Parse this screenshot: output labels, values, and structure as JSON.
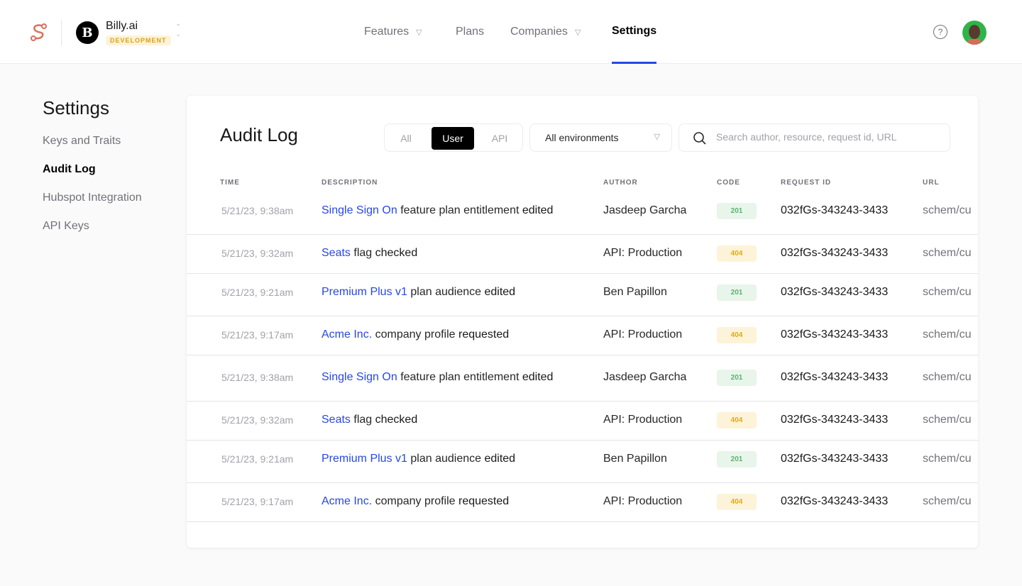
{
  "header": {
    "org_initial": "B",
    "org_name": "Billy.ai",
    "environment": "DEVELOPMENT",
    "nav": [
      {
        "label": "Features",
        "dropdown": true
      },
      {
        "label": "Plans"
      },
      {
        "label": "Companies",
        "dropdown": true
      },
      {
        "label": "Settings",
        "active": true
      }
    ],
    "help_icon": "?"
  },
  "sidebar": {
    "title": "Settings",
    "items": [
      {
        "label": "Keys and Traits"
      },
      {
        "label": "Audit Log",
        "active": true
      },
      {
        "label": "Hubspot Integration"
      },
      {
        "label": "API Keys"
      }
    ]
  },
  "audit": {
    "title": "Audit Log",
    "filters": [
      "All",
      "User",
      "API"
    ],
    "active_filter": "User",
    "environment_select": "All environments",
    "search_placeholder": "Search author, resource, request id, URL",
    "columns": [
      "TIME",
      "DESCRIPTION",
      "AUTHOR",
      "CODE",
      "REQUEST ID",
      "URL"
    ],
    "rows": [
      {
        "time": "5/21/23, 9:38am",
        "link": "Single Sign On",
        "text": "feature plan entitlement",
        "verb": "edited",
        "author": "Jasdeep Garcha",
        "code": "201",
        "request_id": "032fGs-343243-3433",
        "url": "schem/cu"
      },
      {
        "time": "5/21/23, 9:32am",
        "link": "Seats",
        "text": "flag",
        "verb": "checked",
        "author": "API: Production",
        "code": "404",
        "request_id": "032fGs-343243-3433",
        "url": "schem/cu"
      },
      {
        "time": "5/21/23, 9:21am",
        "link": "Premium Plus v1",
        "text": "plan audience",
        "verb": "edited",
        "author": "Ben Papillon",
        "code": "201",
        "request_id": "032fGs-343243-3433",
        "url": "schem/cu"
      },
      {
        "time": "5/21/23, 9:17am",
        "link": "Acme Inc.",
        "text": "company profile",
        "verb": "requested",
        "author": "API: Production",
        "code": "404",
        "request_id": "032fGs-343243-3433",
        "url": "schem/cu"
      },
      {
        "time": "5/21/23, 9:38am",
        "link": "Single Sign On",
        "text": "feature plan entitlement",
        "verb": "edited",
        "author": "Jasdeep Garcha",
        "code": "201",
        "request_id": "032fGs-343243-3433",
        "url": "schem/cu"
      },
      {
        "time": "5/21/23, 9:32am",
        "link": "Seats",
        "text": "flag",
        "verb": "checked",
        "author": "API: Production",
        "code": "404",
        "request_id": "032fGs-343243-3433",
        "url": "schem/cu"
      },
      {
        "time": "5/21/23, 9:21am",
        "link": "Premium Plus v1",
        "text": "plan audience",
        "verb": "edited",
        "author": "Ben Papillon",
        "code": "201",
        "request_id": "032fGs-343243-3433",
        "url": "schem/cu"
      },
      {
        "time": "5/21/23, 9:17am",
        "link": "Acme Inc.",
        "text": "company profile",
        "verb": "requested",
        "author": "API: Production",
        "code": "404",
        "request_id": "032fGs-343243-3433",
        "url": "schem/cu"
      }
    ]
  },
  "colors": {
    "accent": "#2747e6",
    "code_201_bg": "#e8f5ea",
    "code_201_fg": "#5cb270",
    "code_404_bg": "#fdf3d8",
    "code_404_fg": "#e0a91c",
    "logo": "#d8705a"
  }
}
